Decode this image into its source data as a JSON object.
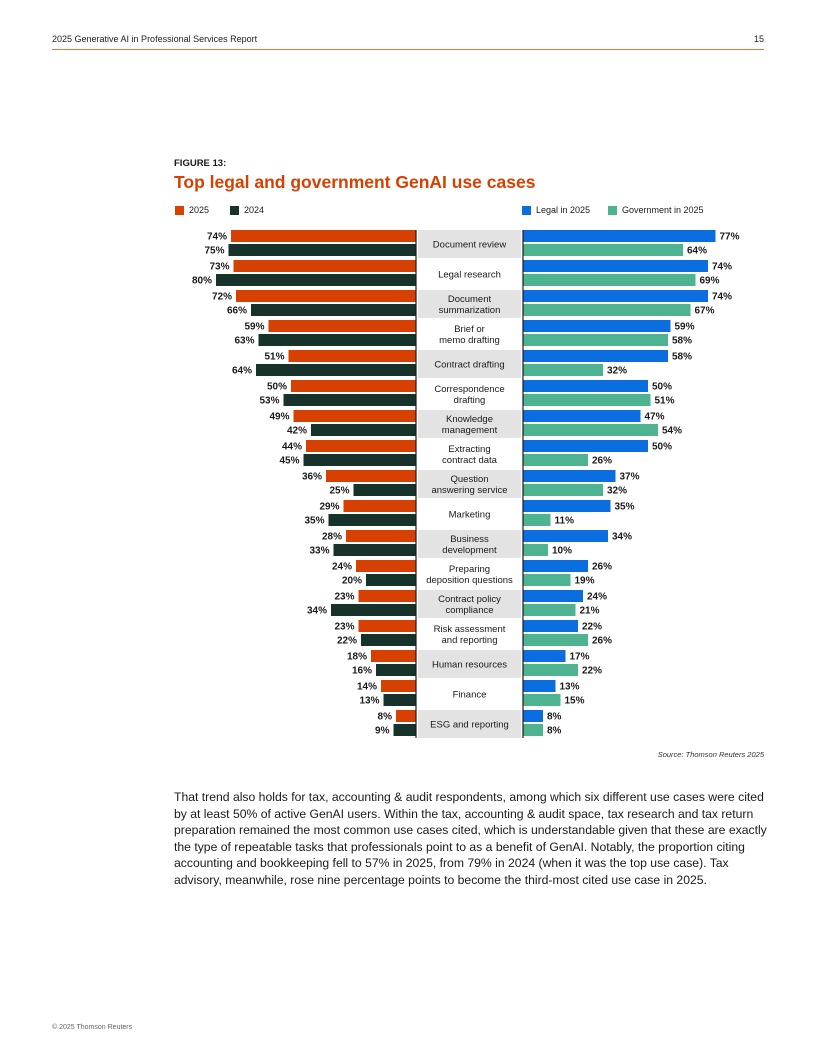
{
  "header": {
    "title": "2025 Generative AI in Professional Services Report",
    "page_number": "15"
  },
  "figure": {
    "label": "FIGURE 13:",
    "title": "Top legal and government GenAI use cases"
  },
  "legend": {
    "left": [
      {
        "label": "2025",
        "color": "#d64000"
      },
      {
        "label": "2024",
        "color": "#16322a"
      }
    ],
    "right": [
      {
        "label": "Legal in 2025",
        "color": "#0a6de0"
      },
      {
        "label": "Government in 2025",
        "color": "#4db391"
      }
    ]
  },
  "chart_data": {
    "type": "bar",
    "title": "Top legal and government GenAI use cases",
    "categories": [
      [
        "Document review"
      ],
      [
        "Legal research"
      ],
      [
        "Document",
        "summarization"
      ],
      [
        "Brief or",
        "memo drafting"
      ],
      [
        "Contract drafting"
      ],
      [
        "Correspondence",
        "drafting"
      ],
      [
        "Knowledge",
        "management"
      ],
      [
        "Extracting",
        "contract data"
      ],
      [
        "Question",
        "answering service"
      ],
      [
        "Marketing"
      ],
      [
        "Business",
        "development"
      ],
      [
        "Preparing",
        "deposition questions"
      ],
      [
        "Contract policy",
        "compliance"
      ],
      [
        "Risk assessment",
        "and reporting"
      ],
      [
        "Human resources"
      ],
      [
        "Finance"
      ],
      [
        "ESG and reporting"
      ]
    ],
    "series": [
      {
        "name": "2025",
        "side": "left",
        "color": "#d64000",
        "values": [
          74,
          73,
          72,
          59,
          51,
          50,
          49,
          44,
          36,
          29,
          28,
          24,
          23,
          23,
          18,
          14,
          8
        ]
      },
      {
        "name": "2024",
        "side": "left",
        "color": "#16322a",
        "values": [
          75,
          80,
          66,
          63,
          64,
          53,
          42,
          45,
          25,
          35,
          33,
          20,
          34,
          22,
          16,
          13,
          9
        ]
      },
      {
        "name": "Legal in 2025",
        "side": "right",
        "color": "#0a6de0",
        "values": [
          77,
          74,
          74,
          59,
          58,
          50,
          47,
          50,
          37,
          35,
          34,
          26,
          24,
          22,
          17,
          13,
          8
        ]
      },
      {
        "name": "Government in 2025",
        "side": "right",
        "color": "#4db391",
        "values": [
          64,
          69,
          67,
          58,
          32,
          51,
          54,
          26,
          32,
          11,
          10,
          19,
          21,
          26,
          22,
          15,
          8
        ]
      }
    ],
    "value_suffix": "%",
    "xlim": [
      0,
      100
    ]
  },
  "source": "Source: Thomson Reuters 2025",
  "body_text": "That trend also holds for tax, accounting & audit respondents, among which six different use cases were cited by at least 50% of active GenAI users. Within the tax, accounting & audit space, tax research and tax return preparation remained the most common use cases cited, which is understandable given that these are exactly the type of repeatable tasks that professionals point to as a benefit of GenAI. Notably, the proportion citing accounting and bookkeeping fell to 57% in 2025, from 79% in 2024 (when it was the top use case). Tax advisory, meanwhile, rose nine percentage points to become the third-most cited use case in 2025.",
  "footer": "© 2025 Thomson Reuters"
}
